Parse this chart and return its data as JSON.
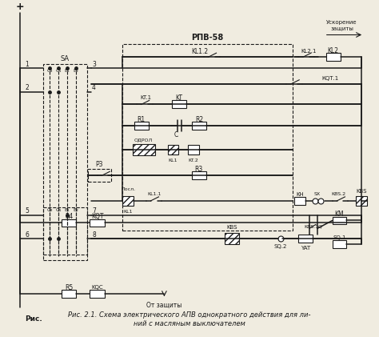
{
  "title": "Рис. 2.1. Схема электрического АПВ однократного действия для ли-\nний с масляным выключателем",
  "rpv_label": "РПВ-58",
  "uskорение_label": "Ускорение\nзащиты",
  "bg_color": "#f0ece0",
  "line_color": "#1a1a1a",
  "fig_width": 4.74,
  "fig_height": 4.21,
  "dpi": 100
}
